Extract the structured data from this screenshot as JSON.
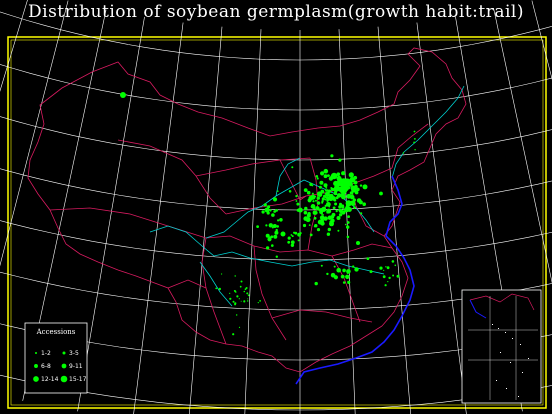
{
  "title": "Distribution of soybean germplasm(growth habit:trail)",
  "legend": {
    "title": "Accessions",
    "items": [
      {
        "label": "1-2",
        "size": 1
      },
      {
        "label": "3-5",
        "size": 2
      },
      {
        "label": "6-8",
        "size": 3
      },
      {
        "label": "9-11",
        "size": 4
      },
      {
        "label": "12-14",
        "size": 5
      },
      {
        "label": "15-17",
        "size": 6
      }
    ]
  },
  "colors": {
    "background": "#000000",
    "frame": "#ffff00",
    "graticule": "#ffffff",
    "border": "#d81b60",
    "river": "#00d0d0",
    "coast": "#1a1aff",
    "points": "#00ff00"
  }
}
